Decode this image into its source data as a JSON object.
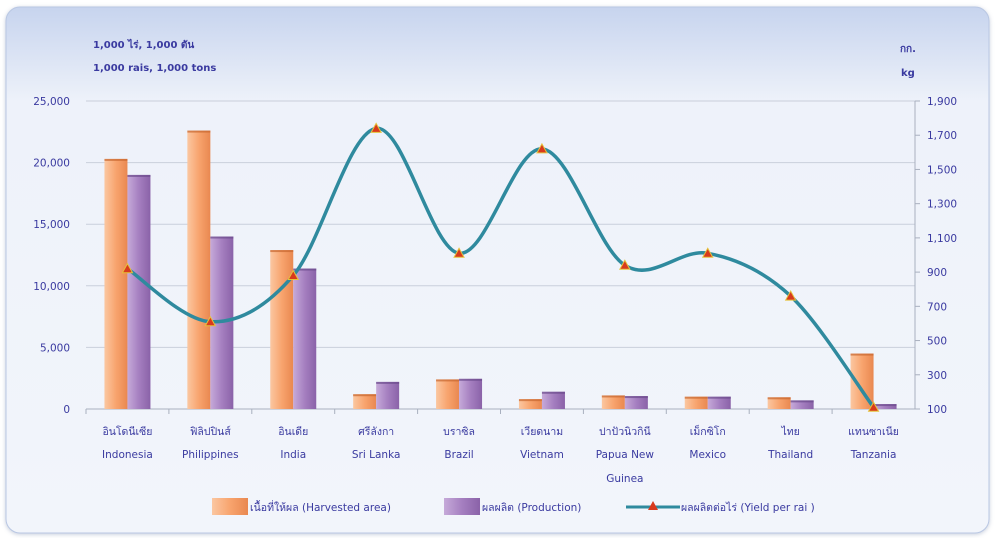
{
  "units": {
    "left_line1": "1,000 ไร่,  1,000 ตัน",
    "left_line2": "1,000 rais,  1,000 tons",
    "right_line1": "กก.",
    "right_line2": "kg"
  },
  "colors": {
    "frame_top": "#c7d4ee",
    "frame_bottom": "#f2f5fb",
    "area_bar": "#f8a46e",
    "production_bar": "#a57fc0",
    "yield_line": "#2f8a9e",
    "yield_marker": "#d83a1d",
    "axis_text": "#3a3aa0"
  },
  "chart_data": {
    "type": "bar",
    "categories": [
      {
        "th": "อินโดนีเซีย",
        "en": "Indonesia"
      },
      {
        "th": "ฟิลิปปินส์",
        "en": "Philippines"
      },
      {
        "th": "อินเดีย",
        "en": "India"
      },
      {
        "th": "ศรีลังกา",
        "en": "Sri Lanka"
      },
      {
        "th": "บราซิล",
        "en": "Brazil"
      },
      {
        "th": "เวียดนาม",
        "en": "Vietnam"
      },
      {
        "th": "ปาปัวนิวกินี",
        "en": "Papua New Guinea"
      },
      {
        "th": "เม็กซิโก",
        "en": "Mexico"
      },
      {
        "th": "ไทย",
        "en": "Thailand"
      },
      {
        "th": "แทนซาเนีย",
        "en": "Tanzania"
      }
    ],
    "series": [
      {
        "name": "เนื้อที่ให้ผล (Harvested area)",
        "axis": "left",
        "type": "bar",
        "values": [
          20300,
          22600,
          12900,
          1200,
          2400,
          800,
          1100,
          1000,
          950,
          4500
        ]
      },
      {
        "name": "ผลผลิต  (Production)",
        "axis": "left",
        "type": "bar",
        "values": [
          19000,
          14000,
          11400,
          2200,
          2450,
          1400,
          1050,
          1000,
          700,
          400
        ]
      },
      {
        "name": "ผลผลิตต่อไร่ (Yield per rai )",
        "axis": "right",
        "type": "line",
        "values": [
          920,
          610,
          880,
          1740,
          1010,
          1620,
          940,
          1010,
          760,
          110
        ]
      }
    ],
    "y_left": {
      "range": [
        0,
        25000
      ],
      "ticks": [
        0,
        5000,
        10000,
        15000,
        20000,
        25000
      ],
      "tick_labels": [
        "0",
        "5,000",
        "10,000",
        "15,000",
        "20,000",
        "25,000"
      ]
    },
    "y_right": {
      "range": [
        100,
        1900
      ],
      "ticks": [
        100,
        300,
        500,
        700,
        900,
        1100,
        1300,
        1500,
        1700,
        1900
      ],
      "tick_labels": [
        "100",
        "300",
        "500",
        "700",
        "900",
        "1,100",
        "1,300",
        "1,500",
        "1,700",
        "1,900"
      ]
    },
    "grid": true,
    "legend_position": "bottom"
  }
}
